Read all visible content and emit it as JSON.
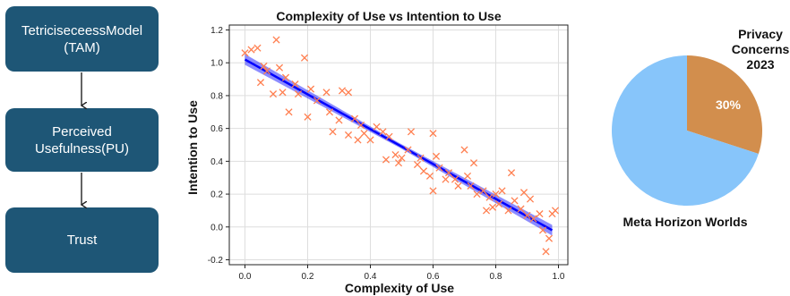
{
  "flow": {
    "boxes": [
      {
        "label": "TetriciseceessModel\n(TAM)"
      },
      {
        "label": "Perceived\nUsefulness(PU)"
      },
      {
        "label": "Trust"
      }
    ],
    "box_color": "#1e5676"
  },
  "chart_data": [
    {
      "type": "scatter",
      "title": "Complexity of Use vs Intention to Use",
      "xlabel": "Complexity of Use",
      "ylabel": "Intention to Use",
      "xlim": [
        -0.05,
        1.03
      ],
      "ylim": [
        -0.23,
        1.23
      ],
      "xticks": [
        "0.0",
        "0.2",
        "0.4",
        "0.6",
        "0.8",
        "1.0"
      ],
      "yticks": [
        "-0.2",
        "0.0",
        "0.2",
        "0.4",
        "0.6",
        "0.8",
        "1.0",
        "1.2"
      ],
      "grid": true,
      "marker": "x",
      "point_color": "#ff7f50",
      "line_color": "#0000ff",
      "regression": {
        "x0": 0.0,
        "y0": 1.02,
        "x1": 0.98,
        "y1": -0.02
      },
      "points": [
        {
          "x": 0.0,
          "y": 1.06
        },
        {
          "x": 0.02,
          "y": 1.08
        },
        {
          "x": 0.04,
          "y": 1.09
        },
        {
          "x": 0.05,
          "y": 0.88
        },
        {
          "x": 0.06,
          "y": 0.98
        },
        {
          "x": 0.07,
          "y": 0.95
        },
        {
          "x": 0.09,
          "y": 0.81
        },
        {
          "x": 0.1,
          "y": 1.14
        },
        {
          "x": 0.11,
          "y": 0.97
        },
        {
          "x": 0.12,
          "y": 0.82
        },
        {
          "x": 0.13,
          "y": 0.91
        },
        {
          "x": 0.14,
          "y": 0.7
        },
        {
          "x": 0.16,
          "y": 0.87
        },
        {
          "x": 0.17,
          "y": 0.81
        },
        {
          "x": 0.19,
          "y": 1.03
        },
        {
          "x": 0.2,
          "y": 0.67
        },
        {
          "x": 0.21,
          "y": 0.84
        },
        {
          "x": 0.23,
          "y": 0.77
        },
        {
          "x": 0.26,
          "y": 0.82
        },
        {
          "x": 0.27,
          "y": 0.7
        },
        {
          "x": 0.28,
          "y": 0.58
        },
        {
          "x": 0.3,
          "y": 0.65
        },
        {
          "x": 0.31,
          "y": 0.83
        },
        {
          "x": 0.33,
          "y": 0.82
        },
        {
          "x": 0.33,
          "y": 0.56
        },
        {
          "x": 0.35,
          "y": 0.66
        },
        {
          "x": 0.36,
          "y": 0.53
        },
        {
          "x": 0.37,
          "y": 0.62
        },
        {
          "x": 0.38,
          "y": 0.57
        },
        {
          "x": 0.4,
          "y": 0.53
        },
        {
          "x": 0.42,
          "y": 0.61
        },
        {
          "x": 0.44,
          "y": 0.58
        },
        {
          "x": 0.45,
          "y": 0.41
        },
        {
          "x": 0.46,
          "y": 0.55
        },
        {
          "x": 0.48,
          "y": 0.44
        },
        {
          "x": 0.49,
          "y": 0.39
        },
        {
          "x": 0.5,
          "y": 0.42
        },
        {
          "x": 0.52,
          "y": 0.47
        },
        {
          "x": 0.53,
          "y": 0.58
        },
        {
          "x": 0.55,
          "y": 0.38
        },
        {
          "x": 0.56,
          "y": 0.42
        },
        {
          "x": 0.57,
          "y": 0.34
        },
        {
          "x": 0.59,
          "y": 0.31
        },
        {
          "x": 0.6,
          "y": 0.22
        },
        {
          "x": 0.6,
          "y": 0.57
        },
        {
          "x": 0.61,
          "y": 0.43
        },
        {
          "x": 0.62,
          "y": 0.36
        },
        {
          "x": 0.64,
          "y": 0.29
        },
        {
          "x": 0.65,
          "y": 0.33
        },
        {
          "x": 0.67,
          "y": 0.29
        },
        {
          "x": 0.68,
          "y": 0.25
        },
        {
          "x": 0.7,
          "y": 0.47
        },
        {
          "x": 0.71,
          "y": 0.31
        },
        {
          "x": 0.72,
          "y": 0.25
        },
        {
          "x": 0.73,
          "y": 0.39
        },
        {
          "x": 0.74,
          "y": 0.2
        },
        {
          "x": 0.76,
          "y": 0.22
        },
        {
          "x": 0.77,
          "y": 0.1
        },
        {
          "x": 0.78,
          "y": 0.18
        },
        {
          "x": 0.79,
          "y": 0.12
        },
        {
          "x": 0.8,
          "y": 0.2
        },
        {
          "x": 0.81,
          "y": 0.14
        },
        {
          "x": 0.82,
          "y": 0.22
        },
        {
          "x": 0.84,
          "y": 0.1
        },
        {
          "x": 0.85,
          "y": 0.33
        },
        {
          "x": 0.86,
          "y": 0.16
        },
        {
          "x": 0.88,
          "y": 0.11
        },
        {
          "x": 0.89,
          "y": 0.21
        },
        {
          "x": 0.9,
          "y": 0.07
        },
        {
          "x": 0.91,
          "y": 0.17
        },
        {
          "x": 0.92,
          "y": 0.05
        },
        {
          "x": 0.94,
          "y": 0.08
        },
        {
          "x": 0.95,
          "y": -0.02
        },
        {
          "x": 0.96,
          "y": -0.15
        },
        {
          "x": 0.97,
          "y": -0.07
        },
        {
          "x": 0.98,
          "y": 0.08
        },
        {
          "x": 0.99,
          "y": 0.1
        }
      ]
    },
    {
      "type": "pie",
      "title": "Privacy\nConcerns\n2023",
      "slices": [
        {
          "label": "Meta Horizon Worlds",
          "value": 70,
          "color": "#87c5fa"
        },
        {
          "label": "30%",
          "value": 30,
          "color": "#d28e4d"
        }
      ]
    }
  ]
}
